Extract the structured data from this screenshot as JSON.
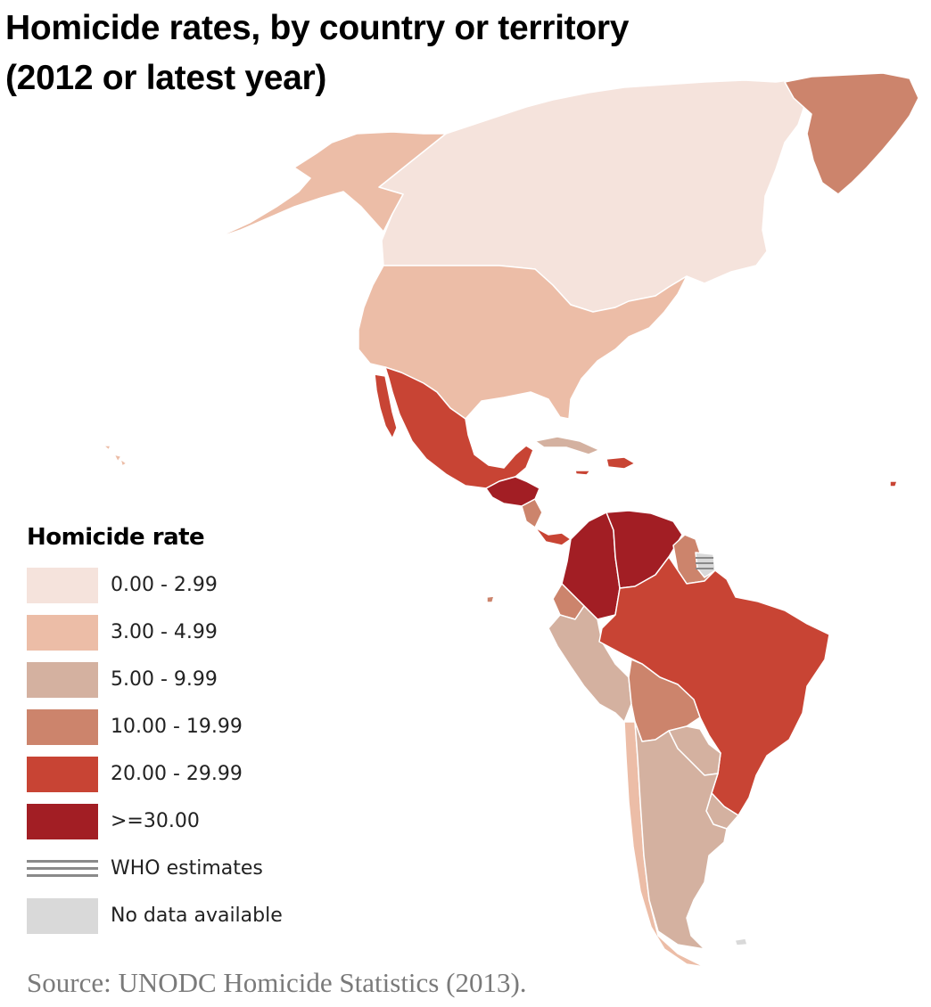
{
  "title": {
    "line1": "Homicide rates, by country or territory",
    "line2": "(2012 or latest year)"
  },
  "colors": {
    "c0": "#f5e3dc",
    "c1": "#ecbda7",
    "c2": "#d4b1a0",
    "c3": "#cc846c",
    "c4": "#c84434",
    "c5": "#a21e24",
    "who": "#8a8a8a",
    "nodata": "#d9d9d9"
  },
  "legend": {
    "title": "Homicide rate",
    "items": [
      {
        "label": "0.00 - 2.99",
        "color": "#f5e3dc"
      },
      {
        "label": "3.00 - 4.99",
        "color": "#ecbda7"
      },
      {
        "label": "5.00 - 9.99",
        "color": "#d4b1a0"
      },
      {
        "label": "10.00 - 19.99",
        "color": "#cc846c"
      },
      {
        "label": "20.00 - 29.99",
        "color": "#c84434"
      },
      {
        "label": ">=30.00",
        "color": "#a21e24"
      }
    ],
    "who_label": "WHO estimates",
    "nodata_label": "No data available"
  },
  "source": "Source: UNODC Homicide Statistics (2013)."
}
